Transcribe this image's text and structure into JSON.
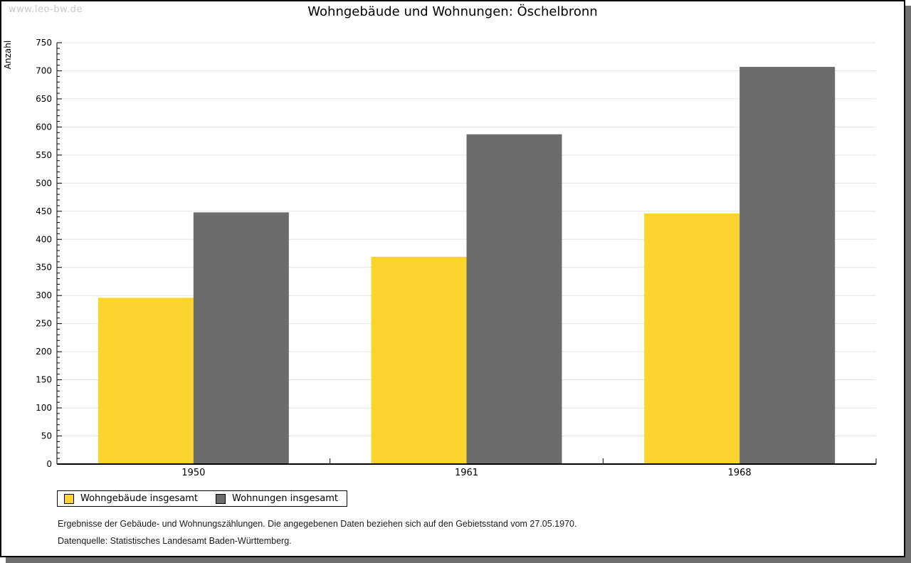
{
  "watermark": "www.leo-bw.de",
  "header": {
    "title": "Wohngebäude und Wohnungen: Öschelbronn"
  },
  "chart_data": {
    "type": "bar",
    "title": "Wohngebäude und Wohnungen: Öschelbronn",
    "categories": [
      "1950",
      "1961",
      "1968"
    ],
    "series": [
      {
        "name": "Wohngebäude insgesamt",
        "color": "#FCD42E",
        "values": [
          296,
          369,
          446
        ]
      },
      {
        "name": "Wohnungen insgesamt",
        "color": "#6C6C6C",
        "values": [
          448,
          587,
          707
        ]
      }
    ],
    "xlabel": "",
    "ylabel": "Anzahl",
    "ylim": [
      0,
      750
    ],
    "ytick_step": 50,
    "minor_tick_step": 10,
    "grid": true,
    "gridline_color": "#e4e4e4",
    "legend_position": "bottom-left"
  },
  "footnotes": {
    "line1": "Ergebnisse der Gebäude- und Wohnungszählungen. Die angegebenen Daten beziehen sich auf den Gebietsstand vom 27.05.1970.",
    "line2": "Datenquelle: Statistisches Landesamt Baden-Württemberg."
  }
}
